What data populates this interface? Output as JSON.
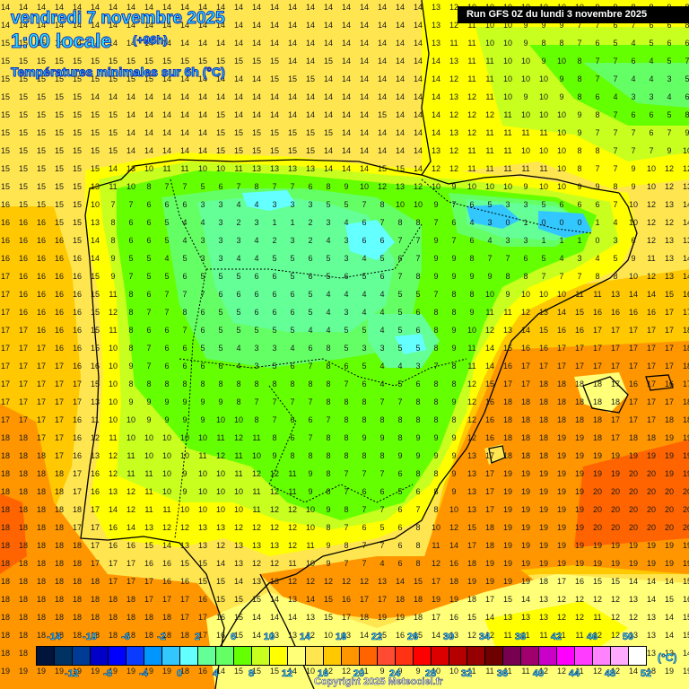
{
  "header": {
    "date": "vendredi 7 novembre 2025",
    "time": "1:00 locale",
    "offset": "(+96h)",
    "variable": "Températures minimales sur 6h (°C)"
  },
  "run_info": "Run GFS 0Z du lundi 3 novembre 2025",
  "copyright": "Copyright 2025 Meteociel.fr",
  "legend": {
    "unit": "(°C)",
    "top_labels": [
      "-14",
      "-10",
      "-6",
      "-2",
      "2",
      "6",
      "10",
      "14",
      "18",
      "22",
      "26",
      "30",
      "34",
      "38",
      "42",
      "46",
      "50"
    ],
    "bottom_labels": [
      "-12",
      "-8",
      "-4",
      "0",
      "4",
      "8",
      "12",
      "16",
      "20",
      "24",
      "28",
      "32",
      "36",
      "40",
      "44",
      "48",
      "52"
    ],
    "colors": [
      "#00143c",
      "#003264",
      "#003c96",
      "#0000c8",
      "#0000ff",
      "#0a3cff",
      "#0096ff",
      "#32c8ff",
      "#64ffff",
      "#64ff96",
      "#64ff64",
      "#64ff00",
      "#c8ff1e",
      "#ffff00",
      "#ffff78",
      "#ffe650",
      "#ffc800",
      "#ff9600",
      "#ff6400",
      "#ff4b32",
      "#ff3214",
      "#ff0000",
      "#dc0000",
      "#b40000",
      "#960000",
      "#6e0000",
      "#780050",
      "#a0006e",
      "#c800c8",
      "#ff00ff",
      "#ff3cff",
      "#ff82ff",
      "#ffaaff",
      "#ffffff"
    ]
  },
  "map": {
    "colors": {
      "sea_warm": "#ff9600",
      "sea_warmer": "#ff6400",
      "sea_mild": "#ffc800",
      "sea_cool": "#ffe650",
      "land_cool_yellow": "#ffff00",
      "land_yellowgreen": "#c8ff1e",
      "land_green": "#64ff00",
      "land_lightgreen": "#64ff64",
      "land_mint": "#64ff96",
      "land_cyan": "#64ffff",
      "land_blue": "#32c8ff",
      "coast": "#000000"
    },
    "grid_rows": [
      "14 14 14 14 14 14 14 14 14 14 14 14 14 14 14 14 14 14 14 14 14 14 14 14 13 12 10 10 10 10 10 10 10 9 9 8 8 9 8",
      "14 14 14 14 14 14 14 14 14 14 14 14 14 14 14 14 14 14 14 14 14 14 14 14 13 12 11 10 10 9 9 9 7 7 6 7 6 6 8",
      "15 15 15 14 14 14 14 14 14 14 14 14 14 14 14 14 14 14 14 14 14 14 14 14 13 11 11 10 10 9 8 8 7 6 5 4 5 6 6",
      "15 15 15 15 15 15 15 15 15 15 15 15 15 15 15 15 14 14 15 14 14 14 14 14 14 13 11 11 10 10 9 10 8 7 7 6 4 5 7",
      "15 15 15 15 15 15 15 15 15 14 14 14 14 14 14 15 15 15 14 14 14 14 14 14 14 12 11 11 10 10 10 9 8 7 7 4 4 3 5",
      "15 15 15 15 15 14 14 14 14 14 14 14 14 14 14 14 14 14 14 14 14 14 14 14 14 13 12 11 10 9 10 9 8 6 4 3 3 4 6",
      "15 15 15 15 15 15 15 14 14 14 14 14 15 14 14 14 14 14 14 14 14 15 14 14 14 12 12 12 11 10 10 10 9 8 7 6 6 5 8",
      "15 15 15 15 15 15 15 14 14 14 14 14 15 15 15 15 15 15 15 14 14 14 14 14 14 13 12 11 11 11 11 10 9 7 7 7 6 7 9",
      "15 15 15 15 15 15 15 14 14 14 14 14 15 15 15 15 15 15 14 14 14 14 14 14 13 12 11 11 11 10 10 10 8 8 7 7 7 9 10",
      "15 15 15 15 15 15 14 13 10 11 11 10 10 11 13 13 13 13 14 14 14 15 15 14 12 12 11 11 11 11 11 10 8 7 7 9 10 12 12",
      "15 15 15 15 15 13 11 10 8 7 7 5 6 7 8 7 7 6 8 9 10 12 13 12 10 9 10 10 10 9 10 10 9 9 8 9 10 12 13",
      "16 15 15 15 15 10 7 7 6 6 6 3 3 4 4 3 3 3 5 5 7 8 10 10 9 7 6 5 3 3 5 6 6 6 7 10 12 13 14",
      "16 16 16 15 15 13 8 6 6 5 4 4 3 2 3 1 1 2 3 4 6 7 8 8 7 6 4 3 0 1 0 0 0 1 4 10 12 12 14",
      "16 16 16 16 15 14 8 6 6 5 4 3 3 3 4 2 3 2 4 3 6 6 7 7 9 7 6 4 3 3 1 1 1 0 3 6 12 13 13",
      "16 16 16 16 16 14 9 5 5 4 5 3 3 4 4 5 5 6 5 3 4 5 6 7 9 9 8 7 7 6 5 4 3 4 5 9 11 13 14",
      "17 16 16 16 16 15 9 7 5 5 6 5 5 5 6 6 5 6 5 6 5 6 7 8 9 9 9 9 8 8 7 7 7 8 8 10 12 13 14",
      "17 16 16 16 16 15 11 8 6 7 7 7 6 6 6 6 6 5 4 4 4 4 5 5 7 8 8 10 9 10 10 10 11 11 13 14 14 15 16",
      "17 16 16 16 16 15 12 8 7 7 8 6 5 5 6 6 6 5 4 3 4 4 5 6 8 8 9 11 11 12 13 14 15 16 16 16 16 17 17",
      "17 17 16 16 16 15 11 8 6 6 7 6 5 5 5 5 5 4 4 5 5 4 5 6 8 9 10 12 13 14 15 16 16 17 17 17 17 17 18",
      "17 17 17 16 16 15 10 8 7 6 6 5 5 4 3 3 4 6 8 5 3 3 5 5 8 9 11 14 15 16 16 17 17 17 17 17 17 17 18",
      "17 17 17 17 16 16 10 9 7 6 6 6 6 4 3 5 6 7 8 6 5 4 4 3 7 8 11 14 16 17 17 17 17 17 17 17 17 17 18",
      "17 17 17 17 17 15 10 8 8 8 8 8 8 8 8 8 8 8 8 7 6 4 5 6 8 8 12 15 17 17 18 18 18 18 17 16 17 16 17",
      "17 17 17 17 17 13 10 9 9 9 9 9 9 8 7 7 7 7 8 8 8 7 7 8 8 9 12 16 18 18 18 18 18 18 18 17 17 17 18",
      "17 17 17 17 16 11 10 10 9 9 9 9 10 10 8 7 6 6 7 8 8 8 8 8 8 8 12 16 18 18 18 18 18 18 17 17 17 18 18",
      "18 18 17 17 16 12 11 10 10 10 10 10 11 12 11 8 6 7 8 8 9 9 8 9 9 9 12 16 18 18 18 19 19 18 17 18 18 19 19",
      "18 18 18 17 16 13 12 11 10 10 10 11 12 11 10 9 8 8 8 8 8 8 9 9 9 9 13 17 18 18 18 19 19 19 19 19 19 19 19",
      "18 18 18 18 17 16 12 11 11 10 9 10 10 11 12 12 11 9 8 7 7 7 6 8 8 9 13 17 19 19 19 19 19 19 19 20 20 19 19",
      "18 18 18 18 17 16 13 12 11 10 9 10 10 10 11 12 11 9 8 7 6 6 5 6 8 9 13 17 19 19 19 19 19 20 20 20 20 20 20",
      "18 18 18 18 18 17 14 12 11 11 10 10 10 10 11 12 12 10 9 8 7 7 6 7 8 10 13 17 19 19 19 19 19 20 20 20 20 20 20",
      "18 18 18 18 17 17 16 14 13 12 12 13 13 12 12 12 12 10 8 7 6 5 6 8 10 12 15 18 19 19 19 19 19 20 20 20 20 20 20",
      "18 18 18 18 18 17 16 16 15 14 13 13 12 13 13 13 12 11 9 8 7 7 6 8 11 14 17 18 19 19 19 19 19 19 19 19 19 19 19",
      "18 18 18 18 18 17 17 17 16 16 15 15 14 13 12 12 11 10 9 7 7 4 6 8 12 16 18 19 19 19 19 19 19 19 19 19 19 19 19",
      "18 18 18 18 18 18 17 17 17 16 16 15 15 14 13 13 12 12 12 12 12 13 14 15 17 18 19 19 19 19 18 17 16 15 15 14 14 14 15",
      "18 18 18 18 18 18 18 18 17 17 17 16 15 15 15 14 13 14 15 16 17 17 18 18 19 19 18 17 15 14 13 12 12 12 12 13 14 15 16",
      "18 18 18 18 18 18 18 18 18 18 17 17 16 15 14 14 14 13 15 17 18 19 19 18 17 16 15 14 13 13 13 12 12 11 12 12 13 14 15",
      "18 18 18 18 18 18 18 18 18 18 18 17 16 15 14 13 13 12 10 13 14 15 16 15 14 13 12 12 11 11 11 11 11 12 12 13 13 14 15",
      "18 18 18 18 18 18 18 18 18 18 18 17 16 14 13 14 15 17 18 19 19 17 16 14 12 11 11 10 11 11 11 12 12 11 11 12 13 13 14",
      "19 19 19 19 19 19 19 19 19 19 18 16 14 15 15 15 14 10 12 12 11 9 9 9 10 10 11 11 11 11 12 12 11 12 12 14 18 19 19"
    ]
  }
}
